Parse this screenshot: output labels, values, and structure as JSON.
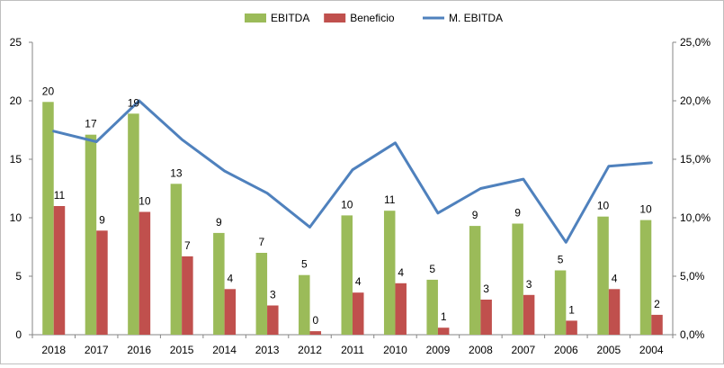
{
  "chart_data": {
    "type": "bar",
    "categories": [
      "2018",
      "2017",
      "2016",
      "2015",
      "2014",
      "2013",
      "2012",
      "2011",
      "2010",
      "2009",
      "2008",
      "2007",
      "2006",
      "2005",
      "2004"
    ],
    "series": [
      {
        "name": "EBITDA",
        "type": "bar",
        "axis": "left",
        "color": "#9bbb59",
        "values": [
          19.9,
          17.1,
          18.9,
          12.9,
          8.7,
          7.0,
          5.1,
          10.2,
          10.6,
          4.7,
          9.3,
          9.5,
          5.5,
          10.1,
          9.8
        ],
        "labels": [
          "20",
          "17",
          "19",
          "13",
          "9",
          "7",
          "5",
          "10",
          "11",
          "5",
          "9",
          "9",
          "5",
          "10",
          "10"
        ]
      },
      {
        "name": "Beneficio",
        "type": "bar",
        "axis": "left",
        "color": "#c0504d",
        "values": [
          11.0,
          8.9,
          10.5,
          6.7,
          3.9,
          2.5,
          0.3,
          3.6,
          4.4,
          0.6,
          3.0,
          3.4,
          1.2,
          3.9,
          1.7
        ],
        "labels": [
          "11",
          "9",
          "10",
          "7",
          "4",
          "3",
          "0",
          "4",
          "4",
          "1",
          "3",
          "3",
          "1",
          "4",
          "2"
        ]
      },
      {
        "name": "M. EBITDA",
        "type": "line",
        "axis": "right",
        "color": "#4f81bd",
        "values": [
          0.174,
          0.165,
          0.2,
          0.167,
          0.14,
          0.121,
          0.092,
          0.141,
          0.164,
          0.104,
          0.125,
          0.133,
          0.079,
          0.144,
          0.147
        ]
      }
    ],
    "y_left": {
      "min": 0,
      "max": 25,
      "ticks": [
        "0",
        "5",
        "10",
        "15",
        "20",
        "25"
      ]
    },
    "y_right": {
      "min": 0,
      "max": 0.25,
      "ticks": [
        "0,0%",
        "5,0%",
        "10,0%",
        "15,0%",
        "20,0%",
        "25,0%"
      ]
    },
    "legend": "top",
    "grid": false,
    "title": "",
    "xlabel": "",
    "ylabel": ""
  }
}
